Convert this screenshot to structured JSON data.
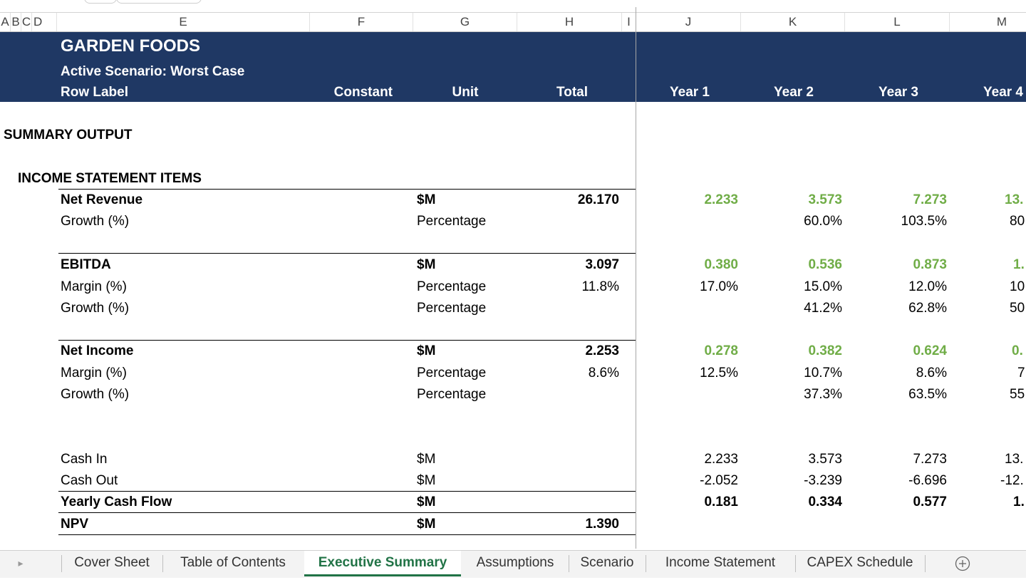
{
  "column_headers": [
    "A",
    "B",
    "C",
    "D",
    "E",
    "F",
    "G",
    "H",
    "I",
    "J",
    "K",
    "L",
    "M"
  ],
  "header": {
    "company": "GARDEN FOODS",
    "scenario": "Active Scenario: Worst Case",
    "cols": {
      "row_label": "Row Label",
      "constant": "Constant",
      "unit": "Unit",
      "total": "Total",
      "y1": "Year 1",
      "y2": "Year 2",
      "y3": "Year 3",
      "y4": "Year 4"
    }
  },
  "sections": {
    "summary": "SUMMARY OUTPUT",
    "income": "INCOME STATEMENT ITEMS"
  },
  "rows": [
    {
      "label": "Net Revenue",
      "unit": "$M",
      "total": "26.170",
      "y1": "2.233",
      "y2": "3.573",
      "y3": "7.273",
      "y4": "13."
    },
    {
      "label": "Growth (%)",
      "unit": "Percentage",
      "total": "",
      "y1": "",
      "y2": "60.0%",
      "y3": "103.5%",
      "y4": "80"
    },
    {
      "label": "EBITDA",
      "unit": "$M",
      "total": "3.097",
      "y1": "0.380",
      "y2": "0.536",
      "y3": "0.873",
      "y4": "1."
    },
    {
      "label": "Margin (%)",
      "unit": "Percentage",
      "total": "11.8%",
      "y1": "17.0%",
      "y2": "15.0%",
      "y3": "12.0%",
      "y4": "10"
    },
    {
      "label": "Growth (%)",
      "unit": "Percentage",
      "total": "",
      "y1": "",
      "y2": "41.2%",
      "y3": "62.8%",
      "y4": "50"
    },
    {
      "label": "Net Income",
      "unit": "$M",
      "total": "2.253",
      "y1": "0.278",
      "y2": "0.382",
      "y3": "0.624",
      "y4": "0."
    },
    {
      "label": "Margin (%)",
      "unit": "Percentage",
      "total": "8.6%",
      "y1": "12.5%",
      "y2": "10.7%",
      "y3": "8.6%",
      "y4": "7"
    },
    {
      "label": "Growth (%)",
      "unit": "Percentage",
      "total": "",
      "y1": "",
      "y2": "37.3%",
      "y3": "63.5%",
      "y4": "55"
    },
    {
      "label": "Cash In",
      "unit": "$M",
      "total": "",
      "y1": "2.233",
      "y2": "3.573",
      "y3": "7.273",
      "y4": "13."
    },
    {
      "label": "Cash Out",
      "unit": "$M",
      "total": "",
      "y1": "-2.052",
      "y2": "-3.239",
      "y3": "-6.696",
      "y4": "-12."
    },
    {
      "label": "Yearly Cash Flow",
      "unit": "$M",
      "total": "",
      "y1": "0.181",
      "y2": "0.334",
      "y3": "0.577",
      "y4": "1."
    },
    {
      "label": "NPV",
      "unit": "$M",
      "total": "1.390",
      "y1": "",
      "y2": "",
      "y3": "",
      "y4": ""
    }
  ],
  "sheet_tabs": [
    "Cover Sheet",
    "Table of Contents",
    "Executive Summary",
    "Assumptions",
    "Scenario",
    "Income Statement",
    "CAPEX Schedule"
  ],
  "active_tab": "Executive Summary",
  "colors": {
    "band": "#1f3864",
    "positive_value": "#70ad47",
    "active_tab": "#217346"
  }
}
